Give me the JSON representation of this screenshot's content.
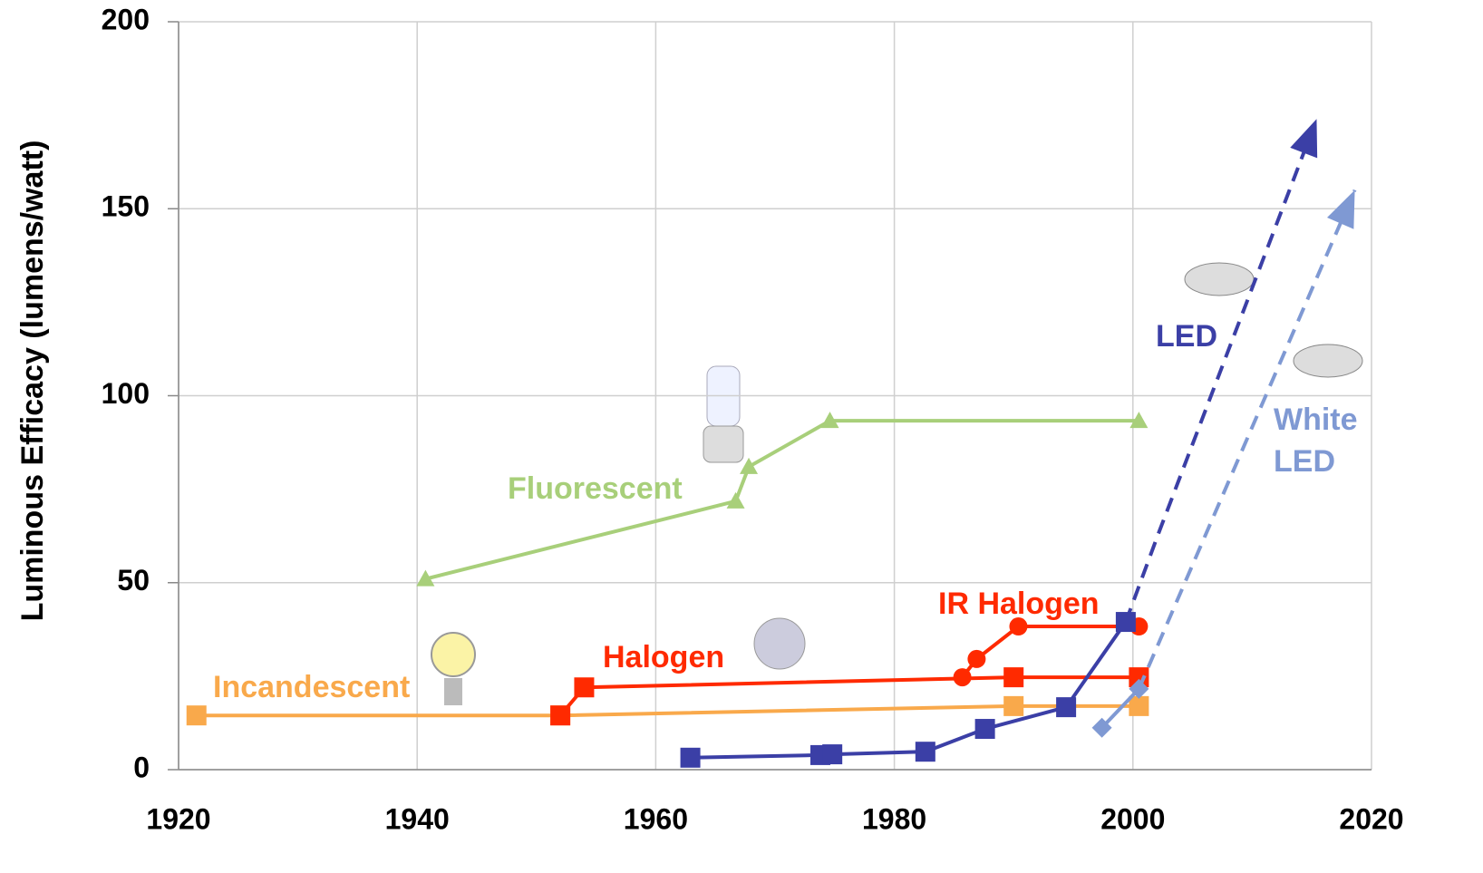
{
  "chart_data": {
    "type": "line",
    "y_label": "Luminous Efficacy  (lumens/watt)",
    "xlim": [
      1920,
      2020
    ],
    "ylim": [
      0,
      200
    ],
    "xticks": [
      1920,
      1940,
      1960,
      1980,
      2000,
      2020
    ],
    "yticks": [
      0,
      50,
      100,
      150,
      200
    ],
    "grid": true,
    "series": [
      {
        "name": "Incandescent",
        "color": "#f9a94b",
        "marker": "square",
        "x": [
          1921.5,
          1952,
          1990,
          2000.5
        ],
        "values": [
          14.5,
          14.5,
          17,
          17
        ]
      },
      {
        "name": "Halogen",
        "color": "#ff2a00",
        "marker": "square",
        "x": [
          1952,
          1954,
          1990,
          2000.5
        ],
        "values": [
          14.5,
          22,
          24.7,
          24.7
        ]
      },
      {
        "name": "IR Halogen",
        "color": "#ff2a00",
        "marker": "circle",
        "x": [
          1985.7,
          1986.9,
          1990.4,
          2000.5
        ],
        "values": [
          24.7,
          29.6,
          38.3,
          38.3
        ]
      },
      {
        "name": "Fluorescent",
        "color": "#a8cf7a",
        "marker": "triangle",
        "x": [
          1940.7,
          1966.7,
          1967.8,
          1974.6,
          2000.5
        ],
        "values": [
          51,
          71.8,
          81,
          93.3,
          93.3
        ]
      },
      {
        "name": "LED",
        "color": "#3b3fa6",
        "marker": "square",
        "x": [
          1962.9,
          1973.8,
          1974.8,
          1982.6,
          1987.6,
          1994.4,
          1999.4
        ],
        "values": [
          3.2,
          3.9,
          4.1,
          4.8,
          10.9,
          16.7,
          39.5
        ],
        "projection": {
          "x": [
            1999.4,
            2002.1,
            2015.4
          ],
          "values": [
            39.5,
            62.8,
            174
          ]
        }
      },
      {
        "name": "White LED",
        "color": "#7f99d3",
        "marker": "diamond",
        "x": [
          1997.4,
          2000.5
        ],
        "values": [
          11.2,
          21.6
        ],
        "projection": {
          "x": [
            2000.5,
            2018.6
          ],
          "values": [
            21.6,
            155
          ]
        }
      }
    ]
  }
}
